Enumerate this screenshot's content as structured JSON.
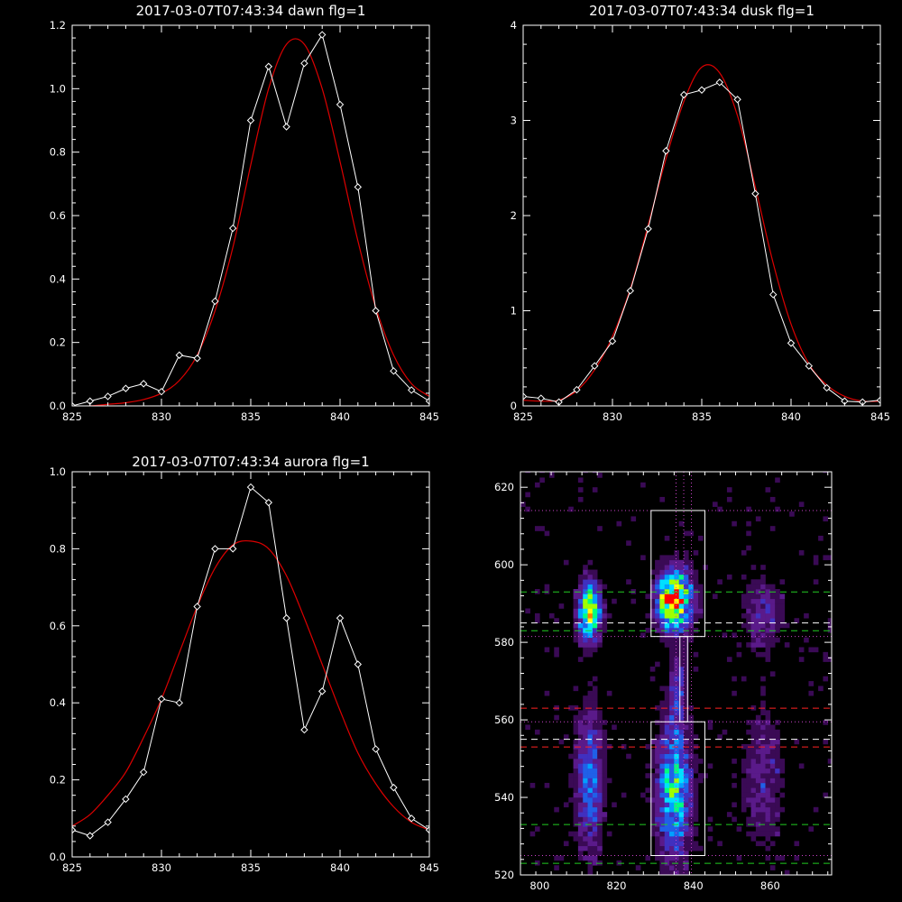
{
  "colors": {
    "background": "#000000",
    "axes": "#ffffff",
    "data": "#ffffff",
    "fit": "#dd0000",
    "dotted": "#cc44cc",
    "dashed_green": "#22cc22",
    "dashed_red": "#ff2222",
    "dashed_white": "#ffffff"
  },
  "chart_data": [
    {
      "type": "line",
      "title": "2017-03-07T07:43:34 dawn flg=1",
      "xlim": [
        825,
        845
      ],
      "ylim": [
        0,
        1.2
      ],
      "xticks": [
        "825",
        "830",
        "835",
        "840",
        "845"
      ],
      "yticks": [
        "0.0",
        "0.2",
        "0.4",
        "0.6",
        "0.8",
        "1.0",
        "1.2"
      ],
      "series": [
        {
          "role": "data",
          "marker": "diamond",
          "x": [
            825,
            826,
            827,
            828,
            829,
            830,
            831,
            832,
            833,
            834,
            835,
            836,
            837,
            838,
            839,
            840,
            841,
            842,
            843,
            844,
            845
          ],
          "y": [
            0.0,
            0.015,
            0.03,
            0.055,
            0.07,
            0.045,
            0.16,
            0.15,
            0.33,
            0.56,
            0.9,
            1.07,
            0.88,
            1.08,
            1.17,
            0.95,
            0.69,
            0.3,
            0.11,
            0.05,
            0.015
          ]
        },
        {
          "role": "fit",
          "x": [
            825,
            826,
            827,
            828,
            829,
            830,
            831,
            832,
            833,
            834,
            835,
            836,
            837,
            838,
            839,
            840,
            841,
            842,
            843,
            844,
            845
          ],
          "y": [
            0.0,
            0.0,
            0.005,
            0.01,
            0.02,
            0.04,
            0.08,
            0.16,
            0.3,
            0.5,
            0.76,
            1.0,
            1.14,
            1.14,
            1.0,
            0.77,
            0.52,
            0.31,
            0.16,
            0.07,
            0.03
          ]
        }
      ]
    },
    {
      "type": "line",
      "title": "2017-03-07T07:43:34 dusk flg=1",
      "xlim": [
        825,
        845
      ],
      "ylim": [
        0,
        4
      ],
      "xticks": [
        "825",
        "830",
        "835",
        "840",
        "845"
      ],
      "yticks": [
        "0",
        "1",
        "2",
        "3",
        "4"
      ],
      "series": [
        {
          "role": "data",
          "marker": "diamond",
          "x": [
            825,
            826,
            827,
            828,
            829,
            830,
            831,
            832,
            833,
            834,
            835,
            836,
            837,
            838,
            839,
            840,
            841,
            842,
            843,
            844,
            845
          ],
          "y": [
            0.1,
            0.08,
            0.04,
            0.17,
            0.42,
            0.68,
            1.21,
            1.86,
            2.68,
            3.27,
            3.32,
            3.4,
            3.22,
            2.23,
            1.17,
            0.66,
            0.42,
            0.19,
            0.05,
            0.04,
            0.06
          ]
        },
        {
          "role": "fit",
          "x": [
            825,
            826,
            827,
            828,
            829,
            830,
            831,
            832,
            833,
            834,
            835,
            836,
            837,
            838,
            839,
            840,
            841,
            842,
            843,
            844,
            845
          ],
          "y": [
            0.06,
            0.05,
            0.06,
            0.16,
            0.38,
            0.73,
            1.23,
            1.9,
            2.6,
            3.2,
            3.56,
            3.5,
            3.05,
            2.3,
            1.5,
            0.86,
            0.44,
            0.22,
            0.1,
            0.05,
            0.05
          ]
        }
      ]
    },
    {
      "type": "line",
      "title": "2017-03-07T07:43:34 aurora flg=1",
      "xlim": [
        825,
        845
      ],
      "ylim": [
        0,
        1.0
      ],
      "xticks": [
        "825",
        "830",
        "835",
        "840",
        "845"
      ],
      "yticks": [
        "0.0",
        "0.2",
        "0.4",
        "0.6",
        "0.8",
        "1.0"
      ],
      "series": [
        {
          "role": "data",
          "marker": "diamond",
          "x": [
            825,
            826,
            827,
            828,
            829,
            830,
            831,
            832,
            833,
            834,
            835,
            836,
            837,
            838,
            839,
            840,
            841,
            842,
            843,
            844,
            845
          ],
          "y": [
            0.07,
            0.055,
            0.09,
            0.15,
            0.22,
            0.41,
            0.4,
            0.65,
            0.8,
            0.8,
            0.96,
            0.92,
            0.62,
            0.33,
            0.43,
            0.62,
            0.5,
            0.28,
            0.18,
            0.1,
            0.07
          ]
        },
        {
          "role": "fit",
          "x": [
            825,
            826,
            827,
            828,
            829,
            830,
            831,
            832,
            833,
            834,
            835,
            836,
            837,
            838,
            839,
            840,
            841,
            842,
            843,
            844,
            845
          ],
          "y": [
            0.08,
            0.11,
            0.16,
            0.22,
            0.31,
            0.41,
            0.53,
            0.65,
            0.75,
            0.81,
            0.82,
            0.8,
            0.73,
            0.62,
            0.5,
            0.38,
            0.27,
            0.19,
            0.13,
            0.09,
            0.07
          ]
        }
      ]
    },
    {
      "type": "heatmap",
      "title": "",
      "xlim": [
        795,
        876
      ],
      "ylim": [
        520,
        624
      ],
      "xticks": [
        "800",
        "820",
        "840",
        "860"
      ],
      "yticks": [
        "520",
        "540",
        "560",
        "580",
        "600",
        "620"
      ],
      "colormap": [
        "#000000",
        "#3a0a55",
        "#5a1a8a",
        "#4030c0",
        "#2060e8",
        "#00a0ff",
        "#00e0ff",
        "#00ff80",
        "#a0ff00",
        "#ffff00",
        "#ff8000",
        "#ff0000"
      ],
      "sources": [
        {
          "cx": 813,
          "cy": 588,
          "sx": 2.0,
          "sy": 5.0,
          "amp": 0.72
        },
        {
          "cx": 813,
          "cy": 545,
          "sx": 2.5,
          "sy": 12.0,
          "amp": 0.36
        },
        {
          "cx": 835,
          "cy": 591,
          "sx": 3.0,
          "sy": 5.0,
          "amp": 1.0
        },
        {
          "cx": 835,
          "cy": 542,
          "sx": 3.0,
          "sy": 12.0,
          "amp": 0.55
        },
        {
          "cx": 836,
          "cy": 568,
          "sx": 1.5,
          "sy": 7.0,
          "amp": 0.22
        },
        {
          "cx": 858,
          "cy": 587,
          "sx": 3.5,
          "sy": 6.0,
          "amp": 0.22
        },
        {
          "cx": 858,
          "cy": 545,
          "sx": 3.5,
          "sy": 12.0,
          "amp": 0.18
        }
      ],
      "boxes": [
        {
          "x": [
            829,
            843
          ],
          "y": [
            581.5,
            614
          ]
        },
        {
          "x": [
            829,
            843
          ],
          "y": [
            525,
            559.5
          ]
        },
        {
          "x": [
            836.5,
            838.5
          ],
          "y": [
            559.5,
            581.5
          ]
        }
      ],
      "hlines": [
        {
          "y": 614,
          "style": "dotted",
          "color": "dotted"
        },
        {
          "y": 593,
          "style": "dashed",
          "color": "dashed_green"
        },
        {
          "y": 585,
          "style": "dashed",
          "color": "dashed_white"
        },
        {
          "y": 583,
          "style": "dashed",
          "color": "dashed_green"
        },
        {
          "y": 581.5,
          "style": "dotted",
          "color": "dotted"
        },
        {
          "y": 563,
          "style": "dashed",
          "color": "dashed_red"
        },
        {
          "y": 559.5,
          "style": "dotted",
          "color": "dotted"
        },
        {
          "y": 555,
          "style": "dashed",
          "color": "dashed_white"
        },
        {
          "y": 553,
          "style": "dashed",
          "color": "dashed_red"
        },
        {
          "y": 533,
          "style": "dashed",
          "color": "dashed_green"
        },
        {
          "y": 525,
          "style": "dotted",
          "color": "dotted"
        },
        {
          "y": 523,
          "style": "dashed",
          "color": "dashed_green"
        }
      ],
      "vlines": [
        {
          "x": 835.5,
          "style": "dotted",
          "color": "dotted"
        },
        {
          "x": 837.5,
          "style": "dotted",
          "color": "dotted"
        },
        {
          "x": 839.5,
          "style": "dotted",
          "color": "dotted"
        }
      ]
    }
  ]
}
